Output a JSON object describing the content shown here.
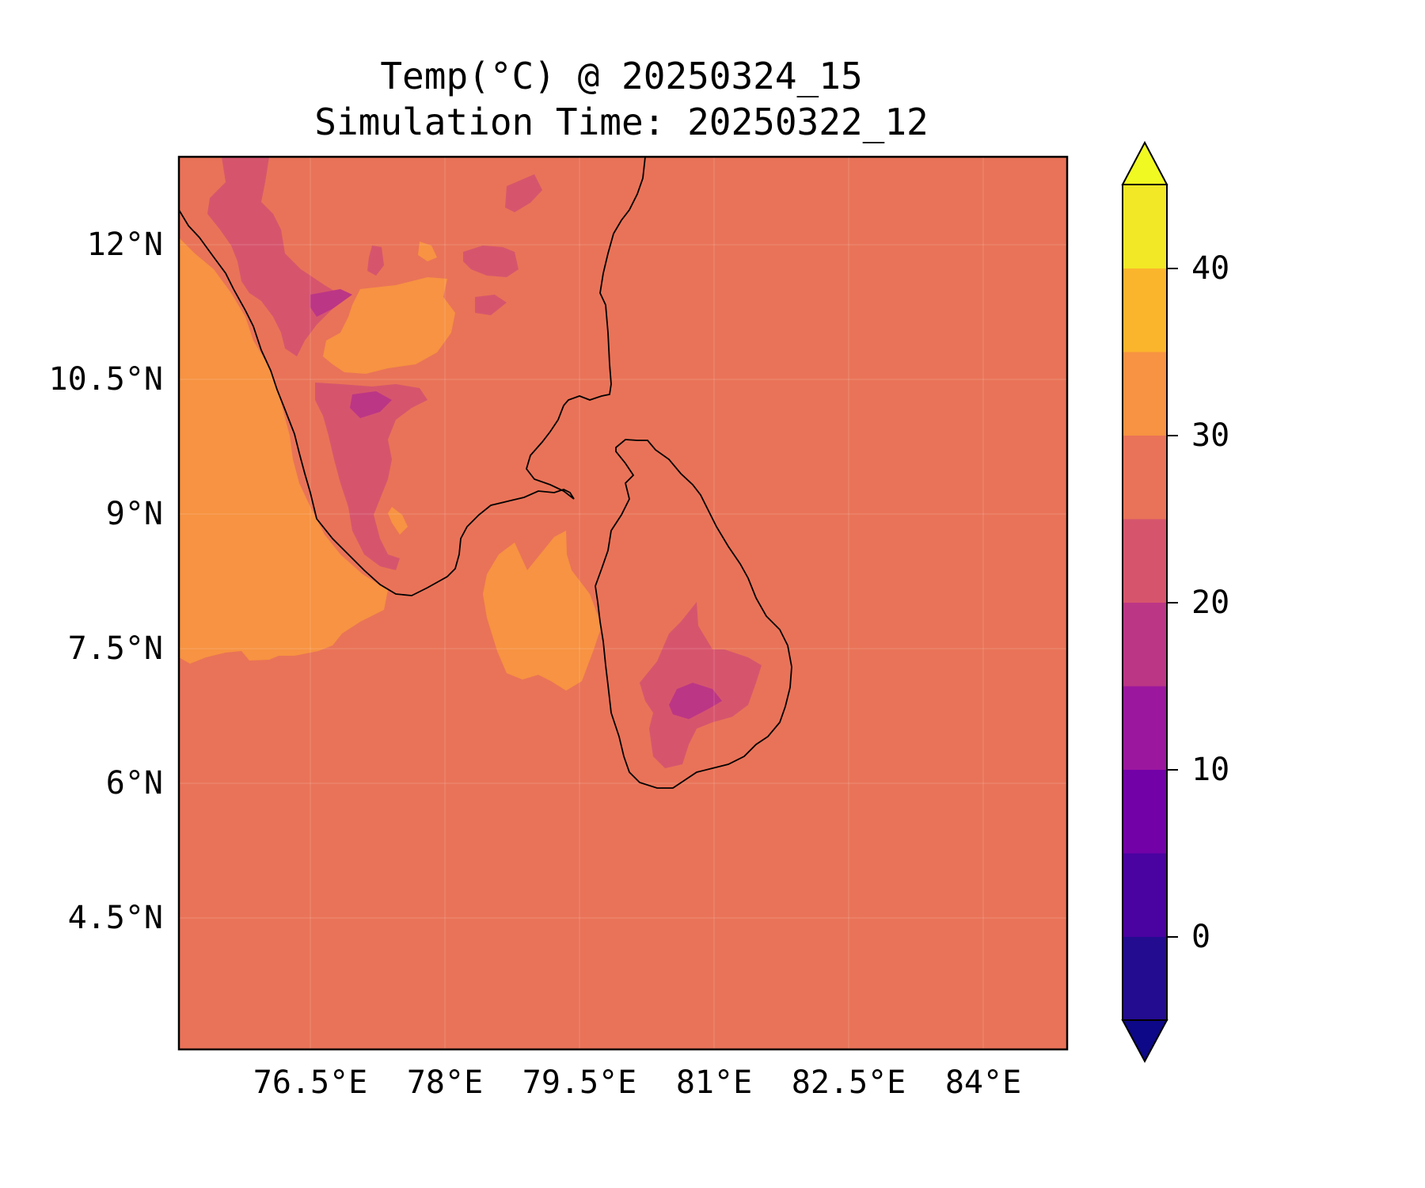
{
  "figure": {
    "title_line1": "Temp(°C) @ 20250324_15",
    "title_line2": "Simulation Time: 20250322_12"
  },
  "map": {
    "background_class": "25-30 °C",
    "xticks": [
      "76.5°E",
      "78°E",
      "79.5°E",
      "81°E",
      "82.5°E",
      "84°E"
    ],
    "yticks": [
      "12°N",
      "10.5°N",
      "9°N",
      "7.5°N",
      "6°N",
      "4.5°N"
    ],
    "extent": {
      "lon": [
        75.0,
        84.9
      ],
      "lat": [
        3.0,
        12.95
      ]
    },
    "grid": true,
    "coastline_color": "#000000"
  },
  "colorbar": {
    "ticks": [
      "0",
      "10",
      "20",
      "30",
      "40"
    ],
    "levels": [
      -5,
      0,
      5,
      10,
      15,
      20,
      25,
      30,
      35,
      40,
      45
    ],
    "colors": [
      "#230c8f",
      "#4a02a0",
      "#7301a8",
      "#9b179e",
      "#bc3686",
      "#d6556d",
      "#e97358",
      "#f79342",
      "#fbb52c",
      "#f2e826"
    ],
    "extend_min_color": "#0d0887",
    "extend_max_color": "#f0f921"
  }
}
